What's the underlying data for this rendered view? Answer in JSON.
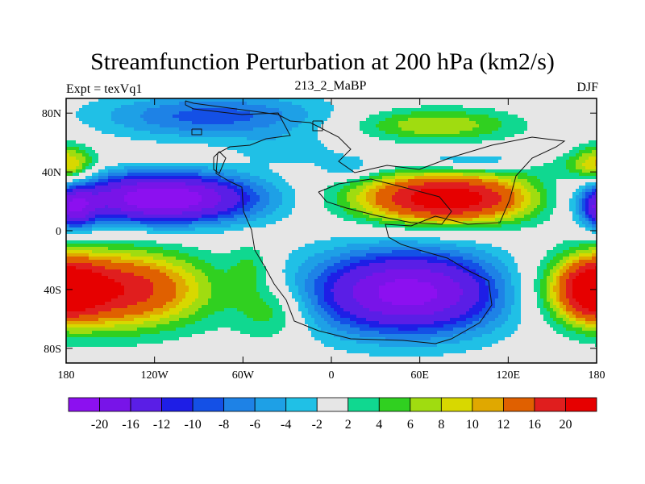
{
  "chart_data": {
    "type": "heatmap",
    "title": "Streamfunction Perturbation at 200 hPa (km2/s)",
    "left_label": "Expt = texVq1",
    "center_label": "213_2_MaBP",
    "right_label": "DJF",
    "xlim": [
      -180,
      180
    ],
    "ylim": [
      -90,
      90
    ],
    "x_ticks": [
      {
        "value": -180,
        "label": "180"
      },
      {
        "value": -120,
        "label": "120W"
      },
      {
        "value": -60,
        "label": "60W"
      },
      {
        "value": 0,
        "label": "0"
      },
      {
        "value": 60,
        "label": "60E"
      },
      {
        "value": 120,
        "label": "120E"
      },
      {
        "value": 180,
        "label": "180"
      }
    ],
    "y_ticks": [
      {
        "value": 80,
        "label": "80N"
      },
      {
        "value": 40,
        "label": "40N"
      },
      {
        "value": 0,
        "label": "0"
      },
      {
        "value": -40,
        "label": "40S"
      },
      {
        "value": -80,
        "label": "80S"
      }
    ],
    "colorbar": {
      "levels": [
        -20,
        -16,
        -12,
        -10,
        -8,
        -6,
        -4,
        -2,
        2,
        4,
        6,
        8,
        10,
        12,
        16,
        20
      ],
      "labels": [
        "-20",
        "-16",
        "-12",
        "-10",
        "-8",
        "-6",
        "-4",
        "-2",
        "2",
        "4",
        "6",
        "8",
        "10",
        "12",
        "16",
        "20"
      ],
      "colors": [
        "#8c10f0",
        "#7814e8",
        "#5a1ee6",
        "#1e1ee6",
        "#1450e6",
        "#1e82e6",
        "#1ea0e6",
        "#20c0e6",
        "#e6e6e6",
        "#10d890",
        "#30d020",
        "#a0dc10",
        "#d8d800",
        "#e0a800",
        "#e06000",
        "#e01e1e",
        "#e60000"
      ]
    },
    "anomalies": [
      {
        "lon": -115,
        "lat": 22,
        "amp": -24,
        "sx": 45,
        "sy": 12
      },
      {
        "lon": 52,
        "lat": -42,
        "amp": -22,
        "sx": 48,
        "sy": 20
      },
      {
        "lon": 78,
        "lat": 22,
        "amp": 24,
        "sx": 42,
        "sy": 12
      },
      {
        "lon": -150,
        "lat": -40,
        "amp": 20,
        "sx": 45,
        "sy": 18
      },
      {
        "lon": 178,
        "lat": -40,
        "amp": 16,
        "sx": 16,
        "sy": 14
      },
      {
        "lon": 185,
        "lat": 15,
        "amp": -14,
        "sx": 10,
        "sy": 10
      },
      {
        "lon": -80,
        "lat": 78,
        "amp": -9,
        "sx": 55,
        "sy": 11
      },
      {
        "lon": -110,
        "lat": 50,
        "amp": 3,
        "sx": 25,
        "sy": 4
      },
      {
        "lon": 70,
        "lat": 72,
        "amp": 8,
        "sx": 40,
        "sy": 8
      },
      {
        "lon": 95,
        "lat": 47,
        "amp": -5,
        "sx": 40,
        "sy": 5
      },
      {
        "lon": -40,
        "lat": -55,
        "amp": 6,
        "sx": 18,
        "sy": 14
      },
      {
        "lon": -30,
        "lat": 55,
        "amp": -3,
        "sx": 25,
        "sy": 7
      },
      {
        "lon": 160,
        "lat": 45,
        "amp": 4,
        "sx": 25,
        "sy": 6
      },
      {
        "lon": -178,
        "lat": 45,
        "amp": 9,
        "sx": 12,
        "sy": 10
      },
      {
        "lon": -55,
        "lat": -25,
        "amp": 4,
        "sx": 10,
        "sy": 12
      },
      {
        "lon": 10,
        "lat": 42,
        "amp": -4,
        "sx": 14,
        "sy": 6
      }
    ]
  }
}
